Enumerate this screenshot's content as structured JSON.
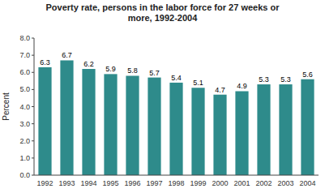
{
  "chart_data": {
    "type": "bar",
    "title": "Poverty rate, persons in the labor force for 27 weeks or\nmore, 1992-2004",
    "categories": [
      "1992",
      "1993",
      "1994",
      "1995",
      "1996",
      "1997",
      "1998",
      "1999",
      "2000",
      "2001",
      "2002",
      "2003",
      "2004"
    ],
    "values": [
      6.3,
      6.7,
      6.2,
      5.9,
      5.8,
      5.7,
      5.4,
      5.1,
      4.7,
      4.9,
      5.3,
      5.3,
      5.6
    ],
    "color": "#2e8b8b",
    "ylabel": "Percent",
    "ylim": [
      0.0,
      8.0
    ],
    "yticks": [
      {
        "value": 0.0,
        "label": "0.0"
      },
      {
        "value": 1.0,
        "label": "1.0"
      },
      {
        "value": 2.0,
        "label": "2.0"
      },
      {
        "value": 3.0,
        "label": "3.0"
      },
      {
        "value": 4.0,
        "label": "4.0"
      },
      {
        "value": 5.0,
        "label": "5.0"
      },
      {
        "value": 6.0,
        "label": "6.0"
      },
      {
        "value": 7.0,
        "label": "7.0"
      },
      {
        "value": 8.0,
        "label": "8.0"
      }
    ],
    "data_labels": true,
    "grid": false
  }
}
